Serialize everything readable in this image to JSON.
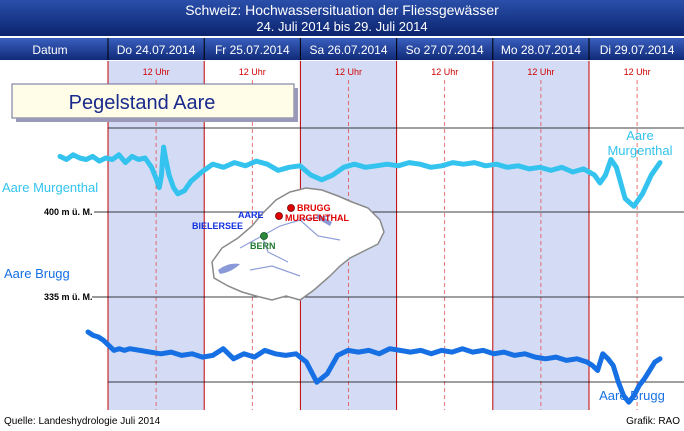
{
  "header": {
    "title": "Schweiz: Hochwassersituation der Fliessgewässer",
    "subtitle": "24. Juli 2014 bis 29. Juli 2014",
    "date_column_label": "Datum"
  },
  "colors": {
    "header_bg": "#1a3a8c",
    "shaded_band": "#d4dcf5",
    "murgenthal_line": "#33c3ee",
    "brugg_line": "#1670e4",
    "day_divider": "#c00000",
    "noon_divider": "#e05050"
  },
  "legend_box": {
    "label": "Pegelstand Aare"
  },
  "map": {
    "labels": {
      "brugg": "BRUGG",
      "murgenthal": "MURGENTHAL",
      "aare": "AARE",
      "bielersee": "BIELERSEE",
      "bern": "BERN"
    }
  },
  "footer": {
    "source": "Quelle: Landeshydrologie Juli 2014",
    "credit": "Grafik: RAO"
  },
  "chart_data": {
    "type": "line",
    "days": [
      "Do 24.07.2014",
      "Fr 25.07.2014",
      "Sa 26.07.2014",
      "So 27.07.2014",
      "Mo 28.07.2014",
      "Di 29.07.2014"
    ],
    "noon_label": "12 Uhr",
    "reference_levels": [
      {
        "label": "400 m ü. M.",
        "series": "Aare Murgenthal"
      },
      {
        "label": "335 m ü. M.",
        "series": "Aare Brugg"
      }
    ],
    "series_labels": {
      "murgenthal_left": "Aare Murgenthal",
      "murgenthal_right_1": "Aare",
      "murgenthal_right_2": "Murgenthal",
      "brugg_left": "Aare Brugg",
      "brugg_right": "Aare Brugg"
    },
    "series": [
      {
        "name": "Aare Murgenthal",
        "y_unit": "chart-relative",
        "x": [
          0,
          0.06,
          0.12,
          0.18,
          0.24,
          0.3,
          0.36,
          0.42,
          0.48,
          0.54,
          0.6,
          0.66,
          0.72,
          0.78,
          0.84,
          0.88,
          0.91,
          0.93,
          0.94,
          0.95,
          0.97,
          1.0,
          1.04,
          1.08,
          1.14,
          1.2,
          1.3,
          1.4,
          1.5,
          1.6,
          1.7,
          1.8,
          1.9,
          2.0,
          2.1,
          2.2,
          2.3,
          2.4,
          2.5,
          2.6,
          2.7,
          2.8,
          2.9,
          3.0,
          3.1,
          3.2,
          3.3,
          3.4,
          3.5,
          3.6,
          3.7,
          3.8,
          3.9,
          4.0,
          4.1,
          4.2,
          4.3,
          4.4,
          4.5,
          4.6,
          4.7,
          4.8,
          4.9,
          4.95,
          5.0,
          5.05,
          5.1,
          5.18,
          5.26,
          5.34,
          5.42,
          5.5
        ],
        "y": [
          0.62,
          0.6,
          0.63,
          0.61,
          0.6,
          0.62,
          0.59,
          0.61,
          0.6,
          0.63,
          0.58,
          0.62,
          0.6,
          0.61,
          0.55,
          0.48,
          0.42,
          0.5,
          0.6,
          0.68,
          0.6,
          0.5,
          0.42,
          0.38,
          0.4,
          0.46,
          0.52,
          0.57,
          0.55,
          0.58,
          0.56,
          0.59,
          0.57,
          0.53,
          0.55,
          0.56,
          0.5,
          0.47,
          0.5,
          0.55,
          0.57,
          0.55,
          0.56,
          0.57,
          0.56,
          0.58,
          0.57,
          0.55,
          0.56,
          0.58,
          0.57,
          0.58,
          0.56,
          0.57,
          0.55,
          0.56,
          0.54,
          0.55,
          0.53,
          0.55,
          0.52,
          0.54,
          0.5,
          0.45,
          0.5,
          0.6,
          0.55,
          0.35,
          0.3,
          0.38,
          0.5,
          0.58
        ]
      },
      {
        "name": "Aare Brugg",
        "y_unit": "chart-relative",
        "x": [
          0,
          0.05,
          0.1,
          0.15,
          0.2,
          0.25,
          0.3,
          0.35,
          0.4,
          0.5,
          0.6,
          0.7,
          0.8,
          0.9,
          1.0,
          1.1,
          1.2,
          1.3,
          1.4,
          1.5,
          1.6,
          1.7,
          1.8,
          1.9,
          2.0,
          2.1,
          2.2,
          2.3,
          2.4,
          2.5,
          2.6,
          2.7,
          2.8,
          2.9,
          3.0,
          3.1,
          3.2,
          3.3,
          3.4,
          3.5,
          3.6,
          3.7,
          3.8,
          3.9,
          4.0,
          4.1,
          4.2,
          4.3,
          4.4,
          4.5,
          4.6,
          4.7,
          4.8,
          4.85,
          4.9,
          4.95,
          5.0,
          5.05,
          5.1,
          5.15,
          5.2,
          5.25,
          5.3,
          5.35,
          5.4,
          5.45,
          5.5
        ],
        "y": [
          0.58,
          0.56,
          0.55,
          0.53,
          0.5,
          0.47,
          0.48,
          0.47,
          0.48,
          0.47,
          0.46,
          0.45,
          0.46,
          0.44,
          0.45,
          0.43,
          0.44,
          0.48,
          0.42,
          0.45,
          0.43,
          0.47,
          0.45,
          0.44,
          0.45,
          0.4,
          0.28,
          0.33,
          0.44,
          0.47,
          0.46,
          0.47,
          0.45,
          0.48,
          0.47,
          0.46,
          0.47,
          0.45,
          0.47,
          0.46,
          0.48,
          0.46,
          0.47,
          0.45,
          0.46,
          0.44,
          0.45,
          0.43,
          0.42,
          0.43,
          0.41,
          0.42,
          0.4,
          0.38,
          0.35,
          0.45,
          0.42,
          0.38,
          0.28,
          0.2,
          0.16,
          0.2,
          0.26,
          0.3,
          0.35,
          0.4,
          0.42
        ]
      }
    ]
  }
}
